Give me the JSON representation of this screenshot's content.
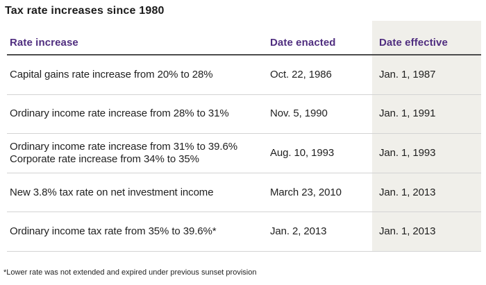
{
  "title": "Tax rate increases since 1980",
  "colors": {
    "header_purple": "#4f2d7f",
    "highlight_column_bg": "#f0efea",
    "header_rule": "#4c4c4c",
    "row_rule": "#d3d3d3",
    "text": "#1f1f1f"
  },
  "table": {
    "columns": [
      {
        "label": "Rate increase"
      },
      {
        "label": "Date enacted"
      },
      {
        "label": "Date effective"
      }
    ],
    "rows": [
      {
        "rate": [
          "Capital gains rate increase from 20% to 28%"
        ],
        "enacted": "Oct. 22, 1986",
        "effective": "Jan. 1, 1987"
      },
      {
        "rate": [
          "Ordinary income rate increase from 28% to 31%"
        ],
        "enacted": "Nov. 5, 1990",
        "effective": "Jan. 1, 1991"
      },
      {
        "rate": [
          "Ordinary income rate increase from 31% to 39.6%",
          "Corporate rate increase from 34% to 35%"
        ],
        "enacted": "Aug. 10, 1993",
        "effective": "Jan. 1, 1993"
      },
      {
        "rate": [
          "New 3.8% tax rate on net investment income"
        ],
        "enacted": "March 23, 2010",
        "effective": "Jan. 1, 2013"
      },
      {
        "rate": [
          "Ordinary income tax rate from 35% to 39.6%*"
        ],
        "enacted": "Jan. 2, 2013",
        "effective": "Jan. 1, 2013"
      }
    ]
  },
  "footnote": "*Lower rate was not extended and expired under previous sunset provision",
  "chart_data": {
    "type": "table",
    "title": "Tax rate increases since 1980",
    "columns": [
      "Rate increase",
      "Date enacted",
      "Date effective"
    ],
    "rows": [
      [
        "Capital gains rate increase from 20% to 28%",
        "Oct. 22, 1986",
        "Jan. 1, 1987"
      ],
      [
        "Ordinary income rate increase from 28% to 31%",
        "Nov. 5, 1990",
        "Jan. 1, 1991"
      ],
      [
        "Ordinary income rate increase from 31% to 39.6% / Corporate rate increase from 34% to 35%",
        "Aug. 10, 1993",
        "Jan. 1, 1993"
      ],
      [
        "New 3.8% tax rate on net investment income",
        "March 23, 2010",
        "Jan. 1, 2013"
      ],
      [
        "Ordinary income tax rate from 35% to 39.6%*",
        "Jan. 2, 2013",
        "Jan. 1, 2013"
      ]
    ],
    "footnote": "*Lower rate was not extended and expired under previous sunset provision",
    "layout": {
      "highlighted_column": "Date effective",
      "header_text_color": "#4f2d7f",
      "highlight_bg": "#f0efea"
    }
  }
}
